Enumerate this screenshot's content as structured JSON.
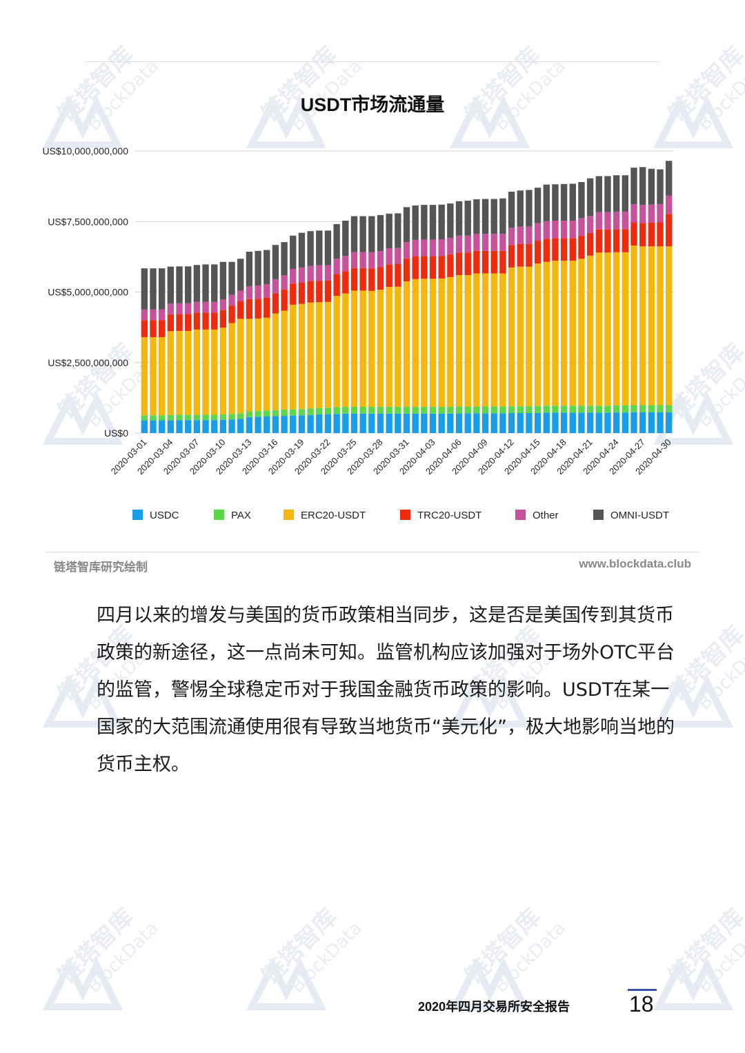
{
  "watermark": {
    "text_cn": "链塔智库",
    "text_en": "BlockData"
  },
  "chart_data": {
    "type": "bar",
    "stacked": true,
    "title": "USDT市场流通量",
    "ylim": [
      0,
      10000000000
    ],
    "y_ticks": [
      "US$0",
      "US$2,500,000,000",
      "US$5,000,000,000",
      "US$7,500,000,000",
      "US$10,000,000,000"
    ],
    "x_tick_labels": [
      "2020-03-01",
      "2020-03-04",
      "2020-03-07",
      "2020-03-10",
      "2020-03-13",
      "2020-03-16",
      "2020-03-19",
      "2020-03-22",
      "2020-03-25",
      "2020-03-28",
      "2020-03-31",
      "2020-04-03",
      "2020-04-06",
      "2020-04-09",
      "2020-04-12",
      "2020-04-15",
      "2020-04-18",
      "2020-04-21",
      "2020-04-24",
      "2020-04-27",
      "2020-04-30"
    ],
    "categories": [
      "2020-03-01",
      "2020-03-02",
      "2020-03-03",
      "2020-03-04",
      "2020-03-05",
      "2020-03-06",
      "2020-03-07",
      "2020-03-08",
      "2020-03-09",
      "2020-03-10",
      "2020-03-11",
      "2020-03-12",
      "2020-03-13",
      "2020-03-14",
      "2020-03-15",
      "2020-03-16",
      "2020-03-17",
      "2020-03-18",
      "2020-03-19",
      "2020-03-20",
      "2020-03-21",
      "2020-03-22",
      "2020-03-23",
      "2020-03-24",
      "2020-03-25",
      "2020-03-26",
      "2020-03-27",
      "2020-03-28",
      "2020-03-29",
      "2020-03-30",
      "2020-03-31",
      "2020-04-01",
      "2020-04-02",
      "2020-04-03",
      "2020-04-04",
      "2020-04-05",
      "2020-04-06",
      "2020-04-07",
      "2020-04-08",
      "2020-04-09",
      "2020-04-10",
      "2020-04-11",
      "2020-04-12",
      "2020-04-13",
      "2020-04-14",
      "2020-04-15",
      "2020-04-16",
      "2020-04-17",
      "2020-04-18",
      "2020-04-19",
      "2020-04-20",
      "2020-04-21",
      "2020-04-22",
      "2020-04-23",
      "2020-04-24",
      "2020-04-25",
      "2020-04-26",
      "2020-04-27",
      "2020-04-28",
      "2020-04-29",
      "2020-04-30"
    ],
    "series": [
      {
        "name": "USDC",
        "color": "#1a9de8",
        "values": [
          450000000,
          450000000,
          450000000,
          450000000,
          460000000,
          460000000,
          460000000,
          460000000,
          460000000,
          470000000,
          480000000,
          500000000,
          570000000,
          580000000,
          590000000,
          600000000,
          610000000,
          620000000,
          630000000,
          640000000,
          660000000,
          670000000,
          680000000,
          690000000,
          690000000,
          690000000,
          690000000,
          690000000,
          690000000,
          690000000,
          690000000,
          690000000,
          690000000,
          690000000,
          690000000,
          690000000,
          700000000,
          700000000,
          700000000,
          700000000,
          700000000,
          700000000,
          710000000,
          710000000,
          710000000,
          710000000,
          720000000,
          720000000,
          720000000,
          720000000,
          720000000,
          720000000,
          720000000,
          720000000,
          730000000,
          730000000,
          740000000,
          740000000,
          740000000,
          740000000,
          740000000
        ]
      },
      {
        "name": "PAX",
        "color": "#5ed64a",
        "values": [
          180000000,
          180000000,
          180000000,
          190000000,
          190000000,
          190000000,
          190000000,
          190000000,
          190000000,
          190000000,
          200000000,
          200000000,
          200000000,
          200000000,
          210000000,
          210000000,
          220000000,
          220000000,
          220000000,
          230000000,
          230000000,
          230000000,
          240000000,
          240000000,
          240000000,
          240000000,
          240000000,
          240000000,
          240000000,
          240000000,
          240000000,
          240000000,
          240000000,
          240000000,
          240000000,
          240000000,
          240000000,
          240000000,
          240000000,
          240000000,
          240000000,
          240000000,
          240000000,
          240000000,
          240000000,
          250000000,
          250000000,
          250000000,
          250000000,
          250000000,
          250000000,
          250000000,
          250000000,
          250000000,
          250000000,
          250000000,
          250000000,
          250000000,
          250000000,
          250000000,
          250000000
        ]
      },
      {
        "name": "ERC20-USDT",
        "color": "#f4b70d",
        "values": [
          2770000000,
          2770000000,
          2770000000,
          2970000000,
          2970000000,
          2970000000,
          3020000000,
          3020000000,
          3020000000,
          3080000000,
          3220000000,
          3350000000,
          3280000000,
          3280000000,
          3290000000,
          3430000000,
          3510000000,
          3710000000,
          3730000000,
          3760000000,
          3750000000,
          3750000000,
          3940000000,
          4020000000,
          4120000000,
          4120000000,
          4110000000,
          4150000000,
          4250000000,
          4260000000,
          4450000000,
          4530000000,
          4540000000,
          4540000000,
          4550000000,
          4600000000,
          4660000000,
          4660000000,
          4720000000,
          4720000000,
          4720000000,
          4720000000,
          4920000000,
          4950000000,
          4950000000,
          5050000000,
          5100000000,
          5140000000,
          5140000000,
          5140000000,
          5210000000,
          5320000000,
          5430000000,
          5430000000,
          5430000000,
          5430000000,
          5660000000,
          5630000000,
          5630000000,
          5630000000,
          5630000000
        ]
      },
      {
        "name": "TRC20-USDT",
        "color": "#ee2b0e",
        "values": [
          600000000,
          600000000,
          600000000,
          600000000,
          600000000,
          600000000,
          600000000,
          600000000,
          600000000,
          620000000,
          620000000,
          620000000,
          700000000,
          700000000,
          720000000,
          720000000,
          750000000,
          750000000,
          750000000,
          760000000,
          760000000,
          760000000,
          780000000,
          790000000,
          800000000,
          800000000,
          800000000,
          800000000,
          800000000,
          800000000,
          810000000,
          800000000,
          800000000,
          800000000,
          800000000,
          800000000,
          800000000,
          800000000,
          800000000,
          800000000,
          800000000,
          800000000,
          800000000,
          800000000,
          800000000,
          810000000,
          820000000,
          800000000,
          800000000,
          800000000,
          820000000,
          800000000,
          820000000,
          820000000,
          820000000,
          820000000,
          820000000,
          830000000,
          840000000,
          850000000,
          1150000000
        ]
      },
      {
        "name": "Other",
        "color": "#c8519c",
        "values": [
          380000000,
          380000000,
          380000000,
          380000000,
          380000000,
          380000000,
          380000000,
          380000000,
          380000000,
          380000000,
          380000000,
          380000000,
          450000000,
          470000000,
          470000000,
          500000000,
          500000000,
          520000000,
          540000000,
          540000000,
          550000000,
          540000000,
          540000000,
          540000000,
          570000000,
          570000000,
          570000000,
          570000000,
          570000000,
          570000000,
          580000000,
          590000000,
          590000000,
          590000000,
          590000000,
          590000000,
          600000000,
          600000000,
          600000000,
          600000000,
          600000000,
          600000000,
          610000000,
          620000000,
          620000000,
          620000000,
          620000000,
          620000000,
          620000000,
          620000000,
          620000000,
          610000000,
          610000000,
          610000000,
          620000000,
          620000000,
          640000000,
          640000000,
          640000000,
          650000000,
          650000000
        ]
      },
      {
        "name": "OMNI-USDT",
        "color": "#555555",
        "values": [
          1460000000,
          1460000000,
          1460000000,
          1310000000,
          1310000000,
          1310000000,
          1310000000,
          1330000000,
          1330000000,
          1330000000,
          1170000000,
          1130000000,
          1230000000,
          1230000000,
          1210000000,
          1210000000,
          1180000000,
          1180000000,
          1230000000,
          1230000000,
          1230000000,
          1230000000,
          1230000000,
          1250000000,
          1270000000,
          1270000000,
          1280000000,
          1280000000,
          1230000000,
          1230000000,
          1240000000,
          1220000000,
          1230000000,
          1230000000,
          1230000000,
          1220000000,
          1220000000,
          1240000000,
          1230000000,
          1240000000,
          1240000000,
          1260000000,
          1280000000,
          1280000000,
          1300000000,
          1260000000,
          1300000000,
          1290000000,
          1300000000,
          1310000000,
          1280000000,
          1330000000,
          1280000000,
          1280000000,
          1290000000,
          1290000000,
          1300000000,
          1340000000,
          1270000000,
          1230000000,
          1230000000
        ]
      }
    ],
    "legend_position": "bottom",
    "grid": true
  },
  "source": {
    "left": "链塔智库研究绘制",
    "right": "www.blockdata.club"
  },
  "body_paragraph": "四月以来的增发与美国的货币政策相当同步，这是否是美国传到其货币政策的新途径，这一点尚未可知。监管机构应该加强对于场外OTC平台的监管，警惕全球稳定币对于我国金融货币政策的影响。USDT在某一国家的大范围流通使用很有导致当地货币“美元化”，极大地影响当地的货币主权。",
  "footer": {
    "report_title": "2020年四月交易所安全报告",
    "page_number": "18"
  }
}
